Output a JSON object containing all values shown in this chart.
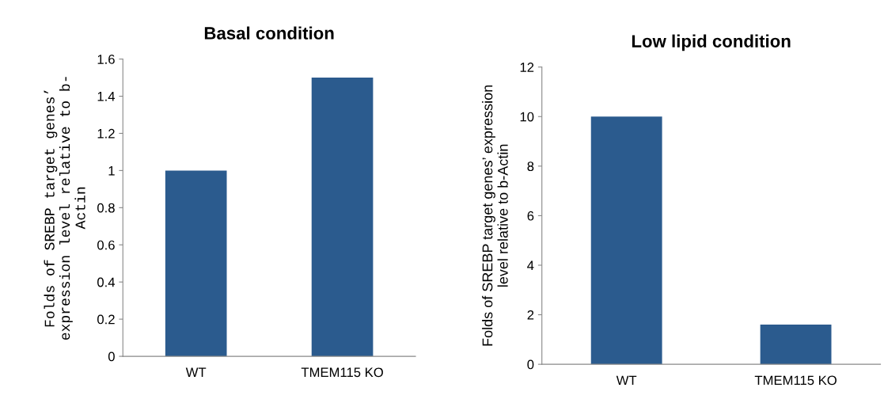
{
  "chart_data": [
    {
      "type": "bar",
      "title": "Basal condition",
      "ylabel": "Folds of SREBP target genes’\nexpression level relative to b-\nActin",
      "categories": [
        "WT",
        "TMEM115 KO"
      ],
      "values": [
        1.0,
        1.5
      ],
      "color": "#2b5b8e",
      "ylim": [
        0,
        1.6
      ],
      "yticks": [
        {
          "value": 0,
          "label": "0"
        },
        {
          "value": 0.2,
          "label": "0.2"
        },
        {
          "value": 0.4,
          "label": "0.4"
        },
        {
          "value": 0.6,
          "label": "0.6"
        },
        {
          "value": 0.8,
          "label": "0.8"
        },
        {
          "value": 1,
          "label": "1"
        },
        {
          "value": 1.2,
          "label": "1.2"
        },
        {
          "value": 1.4,
          "label": "1.4"
        },
        {
          "value": 1.6,
          "label": "1.6"
        }
      ],
      "grid": false,
      "legend": false
    },
    {
      "type": "bar",
      "title": "Low lipid condition",
      "ylabel": "Folds of SREBP target genes’ expression\nlevel relative to b-Actin",
      "categories": [
        "WT",
        "TMEM115 KO"
      ],
      "values": [
        10,
        1.6
      ],
      "color": "#2b5b8e",
      "ylim": [
        0,
        12
      ],
      "yticks": [
        0,
        2,
        4,
        6,
        8,
        10,
        12
      ],
      "grid": false,
      "legend": false
    }
  ]
}
